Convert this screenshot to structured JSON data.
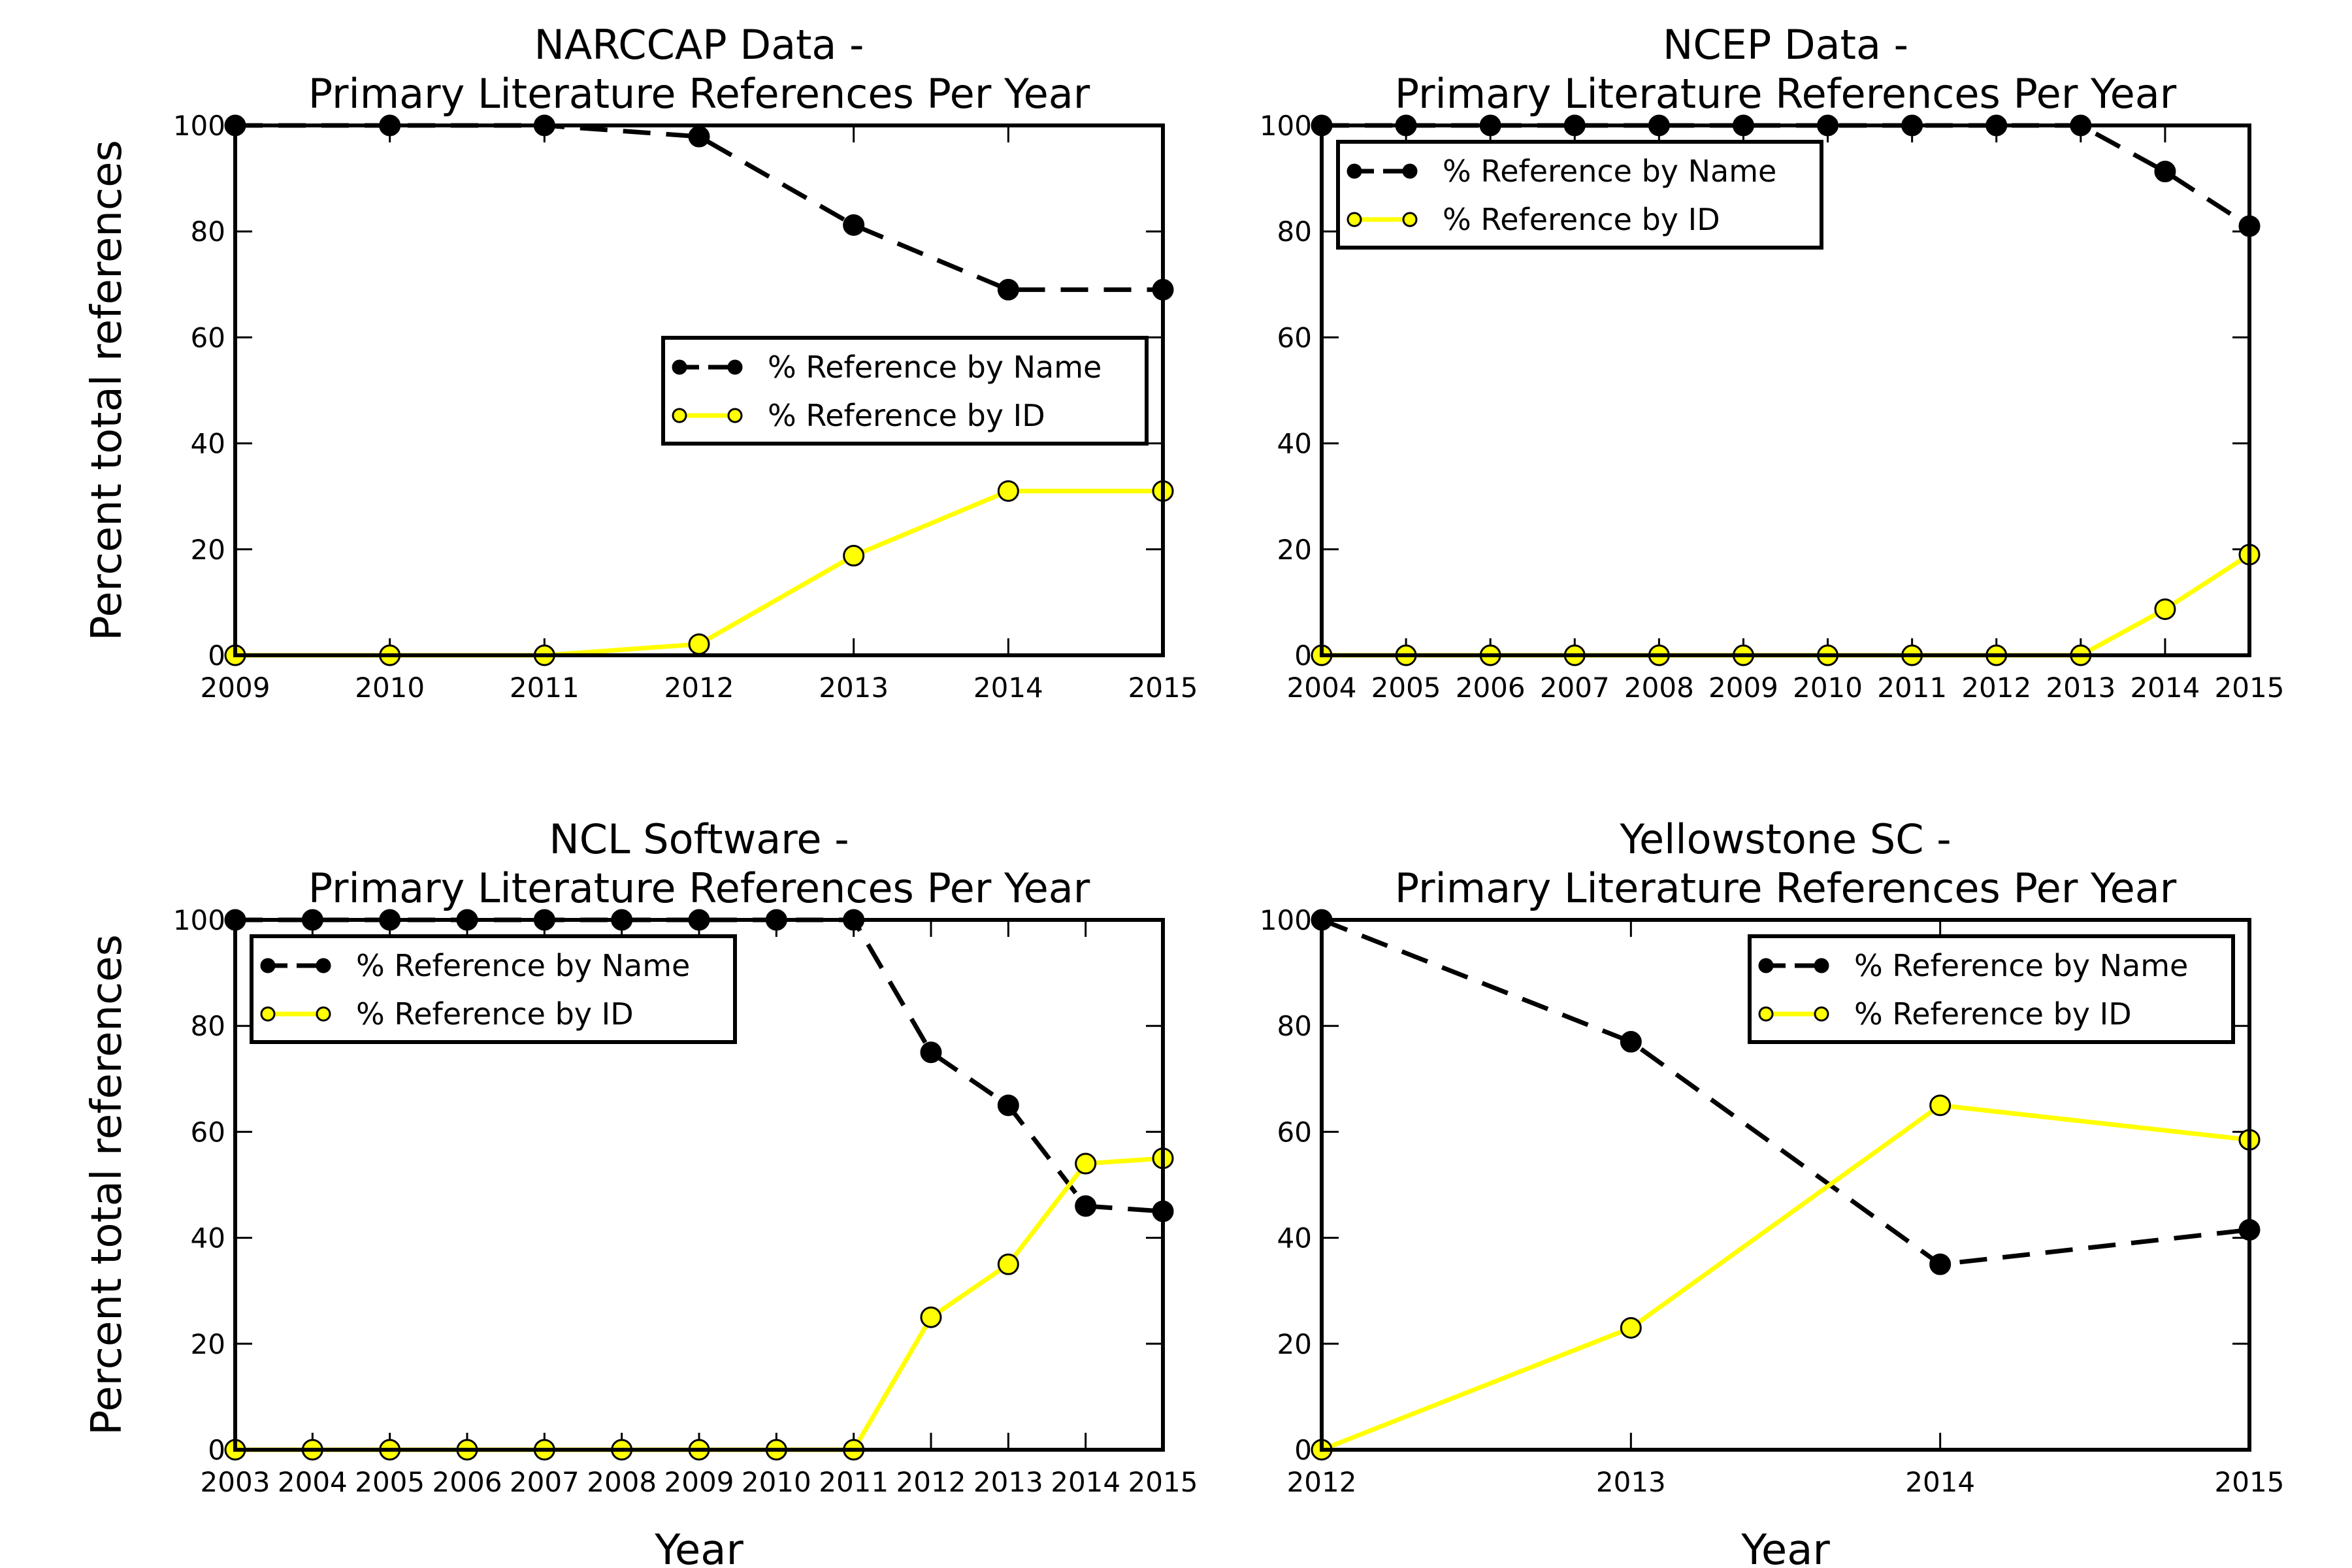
{
  "figure": {
    "background": "#ffffff",
    "name_color": "#000000",
    "id_color": "#ffff00",
    "label_style": "matplotlib-classic"
  },
  "chart_data": [
    {
      "type": "line",
      "title_line1": "NARCCAP Data -",
      "title_line2": "Primary Literature References Per Year",
      "xlabel": "",
      "ylabel": "Percent total references",
      "categories": [
        "2009",
        "2010",
        "2011",
        "2012",
        "2013",
        "2014",
        "2015"
      ],
      "ylim": [
        0,
        100
      ],
      "yticks": [
        "0",
        "20",
        "40",
        "60",
        "80",
        "100"
      ],
      "legend_position": "center-right",
      "series": [
        {
          "name": "% Reference by Name",
          "color": "#000000",
          "style": "dashed",
          "values": [
            100,
            100,
            100,
            97.9,
            81.2,
            69,
            69
          ]
        },
        {
          "name": "% Reference by ID",
          "color": "#ffff00",
          "style": "solid",
          "values": [
            0,
            0,
            0,
            2.1,
            18.8,
            31,
            31
          ]
        }
      ]
    },
    {
      "type": "line",
      "title_line1": "NCEP Data -",
      "title_line2": "Primary Literature References Per Year",
      "xlabel": "",
      "ylabel": "",
      "categories": [
        "2004",
        "2005",
        "2006",
        "2007",
        "2008",
        "2009",
        "2010",
        "2011",
        "2012",
        "2013",
        "2014",
        "2015"
      ],
      "ylim": [
        0,
        100
      ],
      "yticks": [
        "0",
        "20",
        "40",
        "60",
        "80",
        "100"
      ],
      "legend_position": "upper-left",
      "series": [
        {
          "name": "% Reference by Name",
          "color": "#000000",
          "style": "dashed",
          "values": [
            100,
            100,
            100,
            100,
            100,
            100,
            100,
            100,
            100,
            100,
            91.3,
            81
          ]
        },
        {
          "name": "% Reference by ID",
          "color": "#ffff00",
          "style": "solid",
          "values": [
            0,
            0,
            0,
            0,
            0,
            0,
            0,
            0,
            0,
            0,
            8.7,
            19
          ]
        }
      ]
    },
    {
      "type": "line",
      "title_line1": "NCL Software -",
      "title_line2": "Primary Literature References Per Year",
      "xlabel": "Year",
      "ylabel": "Percent total references",
      "categories": [
        "2003",
        "2004",
        "2005",
        "2006",
        "2007",
        "2008",
        "2009",
        "2010",
        "2011",
        "2012",
        "2013",
        "2014",
        "2015"
      ],
      "ylim": [
        0,
        100
      ],
      "yticks": [
        "0",
        "20",
        "40",
        "60",
        "80",
        "100"
      ],
      "legend_position": "upper-left",
      "series": [
        {
          "name": "% Reference by Name",
          "color": "#000000",
          "style": "dashed",
          "values": [
            100,
            100,
            100,
            100,
            100,
            100,
            100,
            100,
            100,
            75,
            65,
            46,
            45
          ]
        },
        {
          "name": "% Reference by ID",
          "color": "#ffff00",
          "style": "solid",
          "values": [
            0,
            0,
            0,
            0,
            0,
            0,
            0,
            0,
            0,
            25,
            35,
            54,
            55
          ]
        }
      ]
    },
    {
      "type": "line",
      "title_line1": "Yellowstone SC -",
      "title_line2": "Primary Literature References Per Year",
      "xlabel": "Year",
      "ylabel": "",
      "categories": [
        "2012",
        "2013",
        "2014",
        "2015"
      ],
      "ylim": [
        0,
        100
      ],
      "yticks": [
        "0",
        "20",
        "40",
        "60",
        "80",
        "100"
      ],
      "legend_position": "upper-right",
      "series": [
        {
          "name": "% Reference by Name",
          "color": "#000000",
          "style": "dashed",
          "values": [
            100,
            77,
            35,
            41.5
          ]
        },
        {
          "name": "% Reference by ID",
          "color": "#ffff00",
          "style": "solid",
          "values": [
            0,
            23,
            65,
            58.5
          ]
        }
      ]
    }
  ]
}
